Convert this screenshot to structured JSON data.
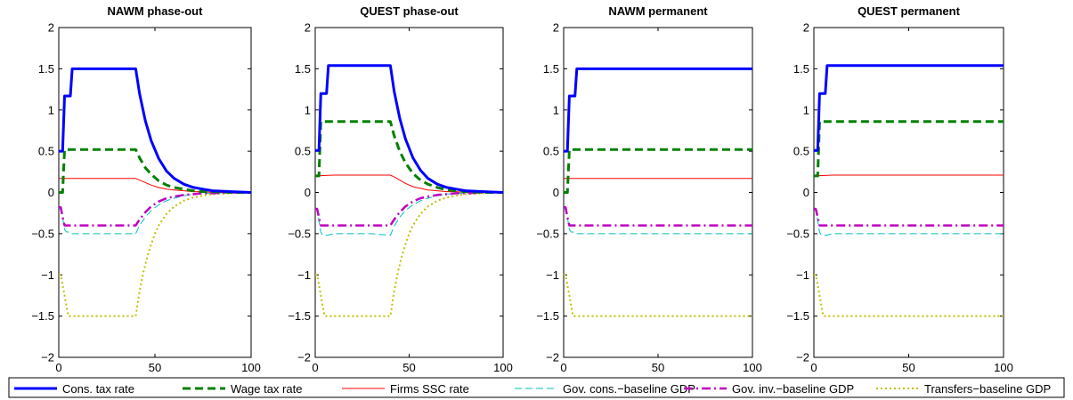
{
  "chart_data": [
    {
      "type": "line",
      "title": "NAWM phase-out",
      "xlim": [
        0,
        100
      ],
      "ylim": [
        -2,
        2
      ],
      "xticks": [
        0,
        50,
        100
      ],
      "yticks": [
        -2,
        -1.5,
        -1,
        -0.5,
        0,
        0.5,
        1,
        1.5,
        2
      ],
      "series": [
        {
          "name": "Cons. tax rate",
          "x": [
            0,
            1,
            2,
            3,
            4,
            5,
            6,
            7,
            8,
            10,
            20,
            30,
            40,
            42,
            45,
            48,
            52,
            56,
            60,
            65,
            70,
            75,
            80,
            90,
            100
          ],
          "values": [
            0.5,
            0.5,
            0.5,
            1.17,
            1.17,
            1.17,
            1.17,
            1.5,
            1.5,
            1.5,
            1.5,
            1.5,
            1.5,
            1.2,
            0.87,
            0.63,
            0.41,
            0.26,
            0.17,
            0.1,
            0.06,
            0.04,
            0.02,
            0.01,
            0.0
          ]
        },
        {
          "name": "Wage tax rate",
          "x": [
            0,
            1,
            2,
            3,
            4,
            5,
            10,
            20,
            30,
            40,
            42,
            45,
            48,
            52,
            56,
            60,
            65,
            70,
            75,
            80,
            90,
            100
          ],
          "values": [
            0.0,
            0.0,
            0.0,
            0.52,
            0.52,
            0.52,
            0.52,
            0.52,
            0.52,
            0.52,
            0.42,
            0.3,
            0.22,
            0.14,
            0.09,
            0.06,
            0.04,
            0.02,
            0.01,
            0.01,
            0.0,
            0.0
          ]
        },
        {
          "name": "Firms SSC rate",
          "x": [
            0,
            10,
            20,
            30,
            40,
            42,
            45,
            48,
            52,
            56,
            60,
            65,
            70,
            75,
            80,
            90,
            100
          ],
          "values": [
            0.17,
            0.17,
            0.17,
            0.17,
            0.17,
            0.15,
            0.12,
            0.09,
            0.06,
            0.04,
            0.03,
            0.02,
            0.01,
            0.01,
            0.0,
            0.0,
            0.0
          ]
        },
        {
          "name": "Gov. cons.−baseline GDP",
          "x": [
            0,
            1,
            2,
            3,
            4,
            5,
            6,
            10,
            20,
            30,
            40,
            42,
            45,
            48,
            52,
            56,
            60,
            65,
            70,
            75,
            80,
            90,
            100
          ],
          "values": [
            -0.2,
            -0.2,
            -0.3,
            -0.45,
            -0.48,
            -0.48,
            -0.5,
            -0.5,
            -0.5,
            -0.5,
            -0.5,
            -0.4,
            -0.3,
            -0.22,
            -0.15,
            -0.1,
            -0.07,
            -0.04,
            -0.02,
            -0.01,
            -0.01,
            0.0,
            0.0
          ]
        },
        {
          "name": "Gov. inv.−baseline GDP",
          "x": [
            0,
            1,
            2,
            3,
            4,
            5,
            10,
            20,
            30,
            40,
            42,
            45,
            48,
            52,
            56,
            60,
            65,
            70,
            75,
            80,
            90,
            100
          ],
          "values": [
            -0.18,
            -0.18,
            -0.3,
            -0.4,
            -0.4,
            -0.4,
            -0.4,
            -0.4,
            -0.4,
            -0.4,
            -0.33,
            -0.24,
            -0.17,
            -0.11,
            -0.07,
            -0.05,
            -0.03,
            -0.02,
            -0.01,
            -0.01,
            0.0,
            0.0
          ]
        },
        {
          "name": "Transfers−baseline GDP",
          "x": [
            0,
            1,
            2,
            3,
            4,
            5,
            6,
            7,
            8,
            10,
            20,
            30,
            40,
            42,
            44,
            46,
            48,
            50,
            52,
            56,
            60,
            65,
            70,
            75,
            80,
            90,
            100
          ],
          "values": [
            -1.0,
            -1.0,
            -1.12,
            -1.25,
            -1.38,
            -1.5,
            -1.5,
            -1.5,
            -1.5,
            -1.5,
            -1.5,
            -1.5,
            -1.5,
            -1.2,
            -0.97,
            -0.78,
            -0.63,
            -0.5,
            -0.4,
            -0.26,
            -0.17,
            -0.1,
            -0.06,
            -0.04,
            -0.02,
            -0.01,
            0.0
          ]
        }
      ]
    },
    {
      "type": "line",
      "title": "QUEST phase-out",
      "xlim": [
        0,
        100
      ],
      "ylim": [
        -2,
        2
      ],
      "xticks": [
        0,
        50,
        100
      ],
      "yticks": [
        -2,
        -1.5,
        -1,
        -0.5,
        0,
        0.5,
        1,
        1.5,
        2
      ],
      "series": [
        {
          "name": "Cons. tax rate",
          "x": [
            0,
            1,
            2,
            3,
            4,
            5,
            6,
            7,
            8,
            10,
            20,
            30,
            40,
            42,
            45,
            48,
            52,
            56,
            60,
            65,
            70,
            75,
            80,
            90,
            100
          ],
          "values": [
            0.51,
            0.51,
            0.51,
            1.2,
            1.2,
            1.2,
            1.2,
            1.54,
            1.54,
            1.54,
            1.54,
            1.54,
            1.54,
            1.23,
            0.9,
            0.65,
            0.42,
            0.27,
            0.17,
            0.1,
            0.06,
            0.04,
            0.02,
            0.01,
            0.0
          ]
        },
        {
          "name": "Wage tax rate",
          "x": [
            0,
            1,
            2,
            3,
            4,
            5,
            10,
            20,
            30,
            40,
            42,
            45,
            48,
            52,
            56,
            60,
            65,
            70,
            75,
            80,
            90,
            100
          ],
          "values": [
            0.2,
            0.2,
            0.2,
            0.86,
            0.86,
            0.86,
            0.86,
            0.86,
            0.86,
            0.86,
            0.69,
            0.5,
            0.36,
            0.23,
            0.15,
            0.1,
            0.06,
            0.03,
            0.02,
            0.01,
            0.0,
            0.0
          ]
        },
        {
          "name": "Firms SSC rate",
          "x": [
            0,
            10,
            20,
            30,
            40,
            42,
            45,
            48,
            52,
            56,
            60,
            65,
            70,
            75,
            80,
            90,
            100
          ],
          "values": [
            0.2,
            0.21,
            0.21,
            0.21,
            0.21,
            0.19,
            0.15,
            0.11,
            0.07,
            0.05,
            0.03,
            0.02,
            0.01,
            0.01,
            0.0,
            0.0,
            0.0
          ]
        },
        {
          "name": "Gov. cons.−baseline GDP",
          "x": [
            0,
            1,
            2,
            3,
            4,
            5,
            6,
            10,
            20,
            30,
            40,
            42,
            45,
            48,
            52,
            56,
            60,
            65,
            70,
            75,
            80,
            90,
            100
          ],
          "values": [
            -0.2,
            -0.2,
            -0.35,
            -0.48,
            -0.52,
            -0.52,
            -0.52,
            -0.5,
            -0.5,
            -0.5,
            -0.52,
            -0.41,
            -0.3,
            -0.22,
            -0.15,
            -0.1,
            -0.07,
            -0.04,
            -0.02,
            -0.01,
            -0.01,
            0.0,
            0.0
          ]
        },
        {
          "name": "Gov. inv.−baseline GDP",
          "x": [
            0,
            1,
            2,
            3,
            4,
            5,
            10,
            20,
            30,
            40,
            42,
            45,
            48,
            52,
            56,
            60,
            65,
            70,
            75,
            80,
            90,
            100
          ],
          "values": [
            -0.2,
            -0.2,
            -0.3,
            -0.4,
            -0.4,
            -0.4,
            -0.4,
            -0.4,
            -0.4,
            -0.4,
            -0.33,
            -0.24,
            -0.17,
            -0.11,
            -0.07,
            -0.05,
            -0.03,
            -0.02,
            -0.01,
            -0.01,
            0.0,
            0.0
          ]
        },
        {
          "name": "Transfers−baseline GDP",
          "x": [
            0,
            1,
            2,
            3,
            4,
            5,
            6,
            7,
            8,
            10,
            20,
            30,
            40,
            42,
            44,
            46,
            48,
            50,
            52,
            56,
            60,
            65,
            70,
            75,
            80,
            90,
            100
          ],
          "values": [
            -1.0,
            -1.0,
            -1.12,
            -1.25,
            -1.38,
            -1.5,
            -1.5,
            -1.5,
            -1.5,
            -1.5,
            -1.5,
            -1.5,
            -1.5,
            -1.2,
            -0.97,
            -0.78,
            -0.63,
            -0.5,
            -0.4,
            -0.26,
            -0.17,
            -0.1,
            -0.06,
            -0.04,
            -0.02,
            -0.01,
            0.0
          ]
        }
      ]
    },
    {
      "type": "line",
      "title": "NAWM permanent",
      "xlim": [
        0,
        100
      ],
      "ylim": [
        -2,
        2
      ],
      "xticks": [
        0,
        50,
        100
      ],
      "yticks": [
        -2,
        -1.5,
        -1,
        -0.5,
        0,
        0.5,
        1,
        1.5,
        2
      ],
      "series": [
        {
          "name": "Cons. tax rate",
          "x": [
            0,
            1,
            2,
            3,
            4,
            5,
            6,
            7,
            8,
            10,
            100
          ],
          "values": [
            0.5,
            0.5,
            0.5,
            1.17,
            1.17,
            1.17,
            1.17,
            1.5,
            1.5,
            1.5,
            1.5
          ]
        },
        {
          "name": "Wage tax rate",
          "x": [
            0,
            1,
            2,
            3,
            4,
            5,
            10,
            100
          ],
          "values": [
            0.0,
            0.0,
            0.0,
            0.52,
            0.52,
            0.52,
            0.52,
            0.52
          ]
        },
        {
          "name": "Firms SSC rate",
          "x": [
            0,
            10,
            100
          ],
          "values": [
            0.17,
            0.17,
            0.17
          ]
        },
        {
          "name": "Gov. cons.−baseline GDP",
          "x": [
            0,
            1,
            2,
            3,
            4,
            5,
            6,
            10,
            100
          ],
          "values": [
            -0.2,
            -0.2,
            -0.3,
            -0.45,
            -0.48,
            -0.48,
            -0.5,
            -0.5,
            -0.5
          ]
        },
        {
          "name": "Gov. inv.−baseline GDP",
          "x": [
            0,
            1,
            2,
            3,
            4,
            5,
            10,
            100
          ],
          "values": [
            -0.18,
            -0.18,
            -0.3,
            -0.4,
            -0.4,
            -0.4,
            -0.4,
            -0.4
          ]
        },
        {
          "name": "Transfers−baseline GDP",
          "x": [
            0,
            1,
            2,
            3,
            4,
            5,
            6,
            10,
            100
          ],
          "values": [
            -1.0,
            -1.0,
            -1.12,
            -1.25,
            -1.38,
            -1.5,
            -1.5,
            -1.5,
            -1.5
          ]
        }
      ]
    },
    {
      "type": "line",
      "title": "QUEST permanent",
      "xlim": [
        0,
        100
      ],
      "ylim": [
        -2,
        2
      ],
      "xticks": [
        0,
        50,
        100
      ],
      "yticks": [
        -2,
        -1.5,
        -1,
        -0.5,
        0,
        0.5,
        1,
        1.5,
        2
      ],
      "series": [
        {
          "name": "Cons. tax rate",
          "x": [
            0,
            1,
            2,
            3,
            4,
            5,
            6,
            7,
            8,
            10,
            100
          ],
          "values": [
            0.51,
            0.51,
            0.51,
            1.2,
            1.2,
            1.2,
            1.2,
            1.54,
            1.54,
            1.54,
            1.54
          ]
        },
        {
          "name": "Wage tax rate",
          "x": [
            0,
            1,
            2,
            3,
            4,
            5,
            10,
            100
          ],
          "values": [
            0.2,
            0.2,
            0.2,
            0.86,
            0.86,
            0.86,
            0.86,
            0.86
          ]
        },
        {
          "name": "Firms SSC rate",
          "x": [
            0,
            10,
            100
          ],
          "values": [
            0.2,
            0.21,
            0.21
          ]
        },
        {
          "name": "Gov. cons.−baseline GDP",
          "x": [
            0,
            1,
            2,
            3,
            4,
            5,
            6,
            10,
            100
          ],
          "values": [
            -0.2,
            -0.2,
            -0.35,
            -0.48,
            -0.52,
            -0.52,
            -0.52,
            -0.5,
            -0.5
          ]
        },
        {
          "name": "Gov. inv.−baseline GDP",
          "x": [
            0,
            1,
            2,
            3,
            4,
            5,
            10,
            100
          ],
          "values": [
            -0.2,
            -0.2,
            -0.3,
            -0.4,
            -0.4,
            -0.4,
            -0.4,
            -0.4
          ]
        },
        {
          "name": "Transfers−baseline GDP",
          "x": [
            0,
            1,
            2,
            3,
            4,
            5,
            6,
            10,
            100
          ],
          "values": [
            -1.0,
            -1.0,
            -1.12,
            -1.25,
            -1.38,
            -1.5,
            -1.5,
            -1.5,
            -1.5
          ]
        }
      ]
    }
  ],
  "styles": [
    {
      "color": "#0000ff",
      "dash": "solid"
    },
    {
      "color": "#008000",
      "dash": "dashed"
    },
    {
      "color": "#ff0000",
      "dash": "solid"
    },
    {
      "color": "#00bfbf",
      "dash": "dashed"
    },
    {
      "color": "#bf00bf",
      "dash": "dashdot"
    },
    {
      "color": "#bfbf00",
      "dash": "dotted"
    }
  ],
  "legend": {
    "placement": "bottom",
    "orientation": "horizontal",
    "entries": [
      "Cons. tax rate",
      "Wage tax rate",
      "Firms SSC rate",
      "Gov. cons.−baseline GDP",
      "Gov. inv.−baseline GDP",
      "Transfers−baseline GDP"
    ]
  }
}
